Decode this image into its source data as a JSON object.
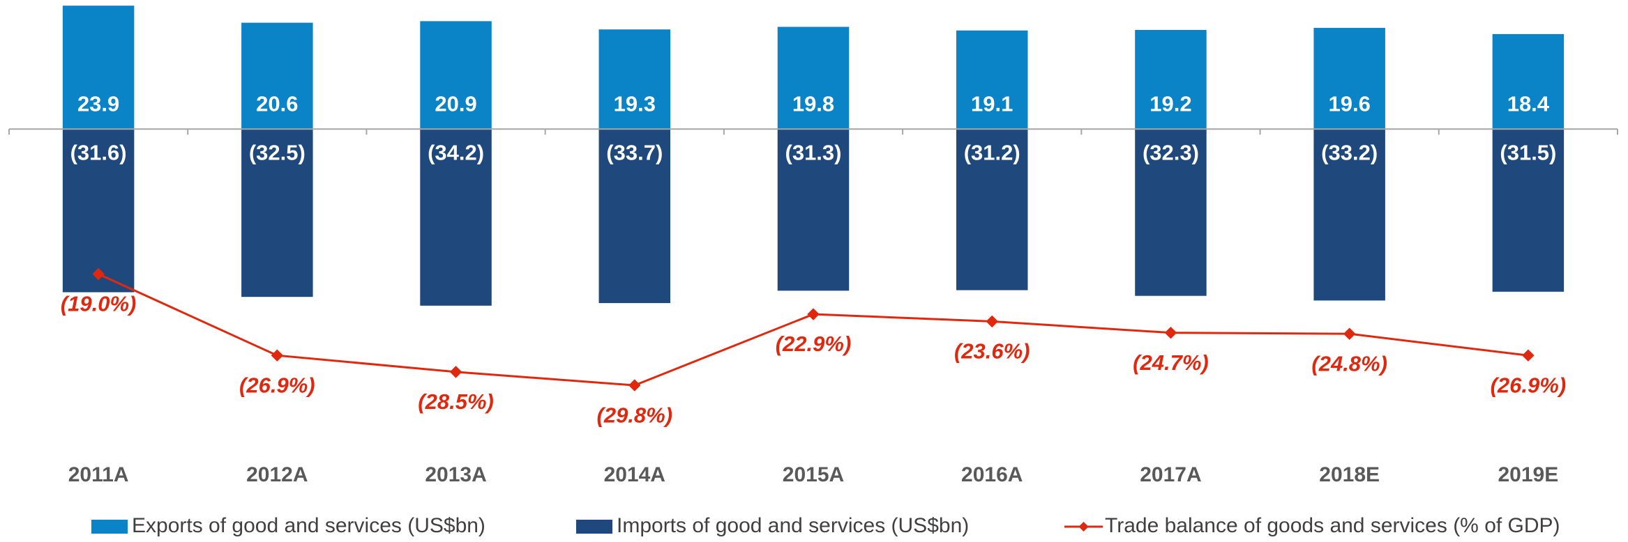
{
  "chart_data": {
    "type": "bar",
    "categories": [
      "2011A",
      "2012A",
      "2013A",
      "2014A",
      "2015A",
      "2016A",
      "2017A",
      "2018E",
      "2019E"
    ],
    "series": [
      {
        "name": "Exports of good and services (US$bn)",
        "type": "bar",
        "color": "#0a84c6",
        "values": [
          23.9,
          20.6,
          20.9,
          19.3,
          19.8,
          19.1,
          19.2,
          19.6,
          18.4
        ]
      },
      {
        "name": "Imports of good and services (US$bn)",
        "type": "bar",
        "color": "#1f497d",
        "values": [
          -31.6,
          -32.5,
          -34.2,
          -33.7,
          -31.3,
          -31.2,
          -32.3,
          -33.2,
          -31.5
        ],
        "value_labels": [
          "(31.6)",
          "(32.5)",
          "(34.2)",
          "(33.7)",
          "(31.3)",
          "(31.2)",
          "(32.3)",
          "(33.2)",
          "(31.5)"
        ]
      },
      {
        "name": "Trade balance of goods and services (% of GDP)",
        "type": "line",
        "axis": "y2",
        "color": "#e0280f",
        "values": [
          -19.0,
          -26.9,
          -28.5,
          -29.8,
          -22.9,
          -23.6,
          -24.7,
          -24.8,
          -26.9
        ],
        "value_labels": [
          "(19.0%)",
          "(26.9%)",
          "(28.5%)",
          "(29.8%)",
          "(22.9%)",
          "(23.6%)",
          "(24.7%)",
          "(24.8%)",
          "(26.9%)"
        ]
      }
    ],
    "ylim": [
      -60,
      25
    ],
    "y2lim": [
      -35,
      7.6
    ],
    "legend": "bottom"
  }
}
